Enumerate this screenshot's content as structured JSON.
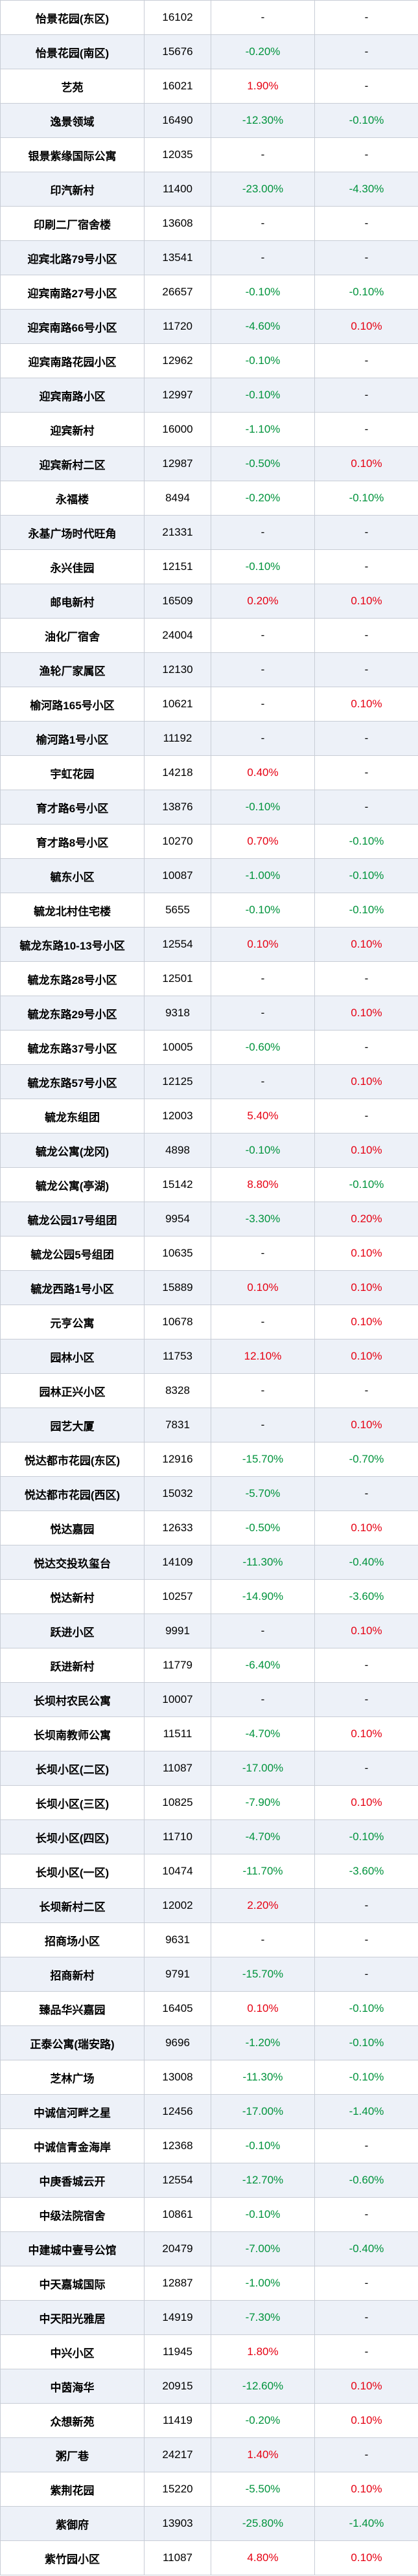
{
  "colors": {
    "up": "#e60012",
    "down": "#00933c",
    "flat": "#000000",
    "row_alt": "#edf1f8",
    "border": "#c8cdd6"
  },
  "rows": [
    {
      "name": "怡景花园(东区)",
      "price": "16102",
      "change1": "-",
      "change2": "-"
    },
    {
      "name": "怡景花园(南区)",
      "price": "15676",
      "change1": "-0.20%",
      "change2": "-"
    },
    {
      "name": "艺苑",
      "price": "16021",
      "change1": "1.90%",
      "change2": "-"
    },
    {
      "name": "逸景领域",
      "price": "16490",
      "change1": "-12.30%",
      "change2": "-0.10%"
    },
    {
      "name": "银景紫缘国际公寓",
      "price": "12035",
      "change1": "-",
      "change2": "-"
    },
    {
      "name": "印汽新村",
      "price": "11400",
      "change1": "-23.00%",
      "change2": "-4.30%"
    },
    {
      "name": "印刷二厂宿舍楼",
      "price": "13608",
      "change1": "-",
      "change2": "-"
    },
    {
      "name": "迎宾北路79号小区",
      "price": "13541",
      "change1": "-",
      "change2": "-"
    },
    {
      "name": "迎宾南路27号小区",
      "price": "26657",
      "change1": "-0.10%",
      "change2": "-0.10%"
    },
    {
      "name": "迎宾南路66号小区",
      "price": "11720",
      "change1": "-4.60%",
      "change2": "0.10%"
    },
    {
      "name": "迎宾南路花园小区",
      "price": "12962",
      "change1": "-0.10%",
      "change2": "-"
    },
    {
      "name": "迎宾南路小区",
      "price": "12997",
      "change1": "-0.10%",
      "change2": "-"
    },
    {
      "name": "迎宾新村",
      "price": "16000",
      "change1": "-1.10%",
      "change2": "-"
    },
    {
      "name": "迎宾新村二区",
      "price": "12987",
      "change1": "-0.50%",
      "change2": "0.10%"
    },
    {
      "name": "永福楼",
      "price": "8494",
      "change1": "-0.20%",
      "change2": "-0.10%"
    },
    {
      "name": "永基广场时代旺角",
      "price": "21331",
      "change1": "-",
      "change2": "-"
    },
    {
      "name": "永兴佳园",
      "price": "12151",
      "change1": "-0.10%",
      "change2": "-"
    },
    {
      "name": "邮电新村",
      "price": "16509",
      "change1": "0.20%",
      "change2": "0.10%"
    },
    {
      "name": "油化厂宿舍",
      "price": "24004",
      "change1": "-",
      "change2": "-"
    },
    {
      "name": "渔轮厂家属区",
      "price": "12130",
      "change1": "-",
      "change2": "-"
    },
    {
      "name": "榆河路165号小区",
      "price": "10621",
      "change1": "-",
      "change2": "0.10%"
    },
    {
      "name": "榆河路1号小区",
      "price": "11192",
      "change1": "-",
      "change2": "-"
    },
    {
      "name": "宇虹花园",
      "price": "14218",
      "change1": "0.40%",
      "change2": "-"
    },
    {
      "name": "育才路6号小区",
      "price": "13876",
      "change1": "-0.10%",
      "change2": "-"
    },
    {
      "name": "育才路8号小区",
      "price": "10270",
      "change1": "0.70%",
      "change2": "-0.10%"
    },
    {
      "name": "毓东小区",
      "price": "10087",
      "change1": "-1.00%",
      "change2": "-0.10%"
    },
    {
      "name": "毓龙北村住宅楼",
      "price": "5655",
      "change1": "-0.10%",
      "change2": "-0.10%"
    },
    {
      "name": "毓龙东路10-13号小区",
      "price": "12554",
      "change1": "0.10%",
      "change2": "0.10%"
    },
    {
      "name": "毓龙东路28号小区",
      "price": "12501",
      "change1": "-",
      "change2": "-"
    },
    {
      "name": "毓龙东路29号小区",
      "price": "9318",
      "change1": "-",
      "change2": "0.10%"
    },
    {
      "name": "毓龙东路37号小区",
      "price": "10005",
      "change1": "-0.60%",
      "change2": "-"
    },
    {
      "name": "毓龙东路57号小区",
      "price": "12125",
      "change1": "-",
      "change2": "0.10%"
    },
    {
      "name": "毓龙东组团",
      "price": "12003",
      "change1": "5.40%",
      "change2": "-"
    },
    {
      "name": "毓龙公寓(龙冈)",
      "price": "4898",
      "change1": "-0.10%",
      "change2": "0.10%"
    },
    {
      "name": "毓龙公寓(亭湖)",
      "price": "15142",
      "change1": "8.80%",
      "change2": "-0.10%"
    },
    {
      "name": "毓龙公园17号组团",
      "price": "9954",
      "change1": "-3.30%",
      "change2": "0.20%"
    },
    {
      "name": "毓龙公园5号组团",
      "price": "10635",
      "change1": "-",
      "change2": "0.10%"
    },
    {
      "name": "毓龙西路1号小区",
      "price": "15889",
      "change1": "0.10%",
      "change2": "0.10%"
    },
    {
      "name": "元亨公寓",
      "price": "10678",
      "change1": "-",
      "change2": "0.10%"
    },
    {
      "name": "园林小区",
      "price": "11753",
      "change1": "12.10%",
      "change2": "0.10%"
    },
    {
      "name": "园林正兴小区",
      "price": "8328",
      "change1": "-",
      "change2": "-"
    },
    {
      "name": "园艺大厦",
      "price": "7831",
      "change1": "-",
      "change2": "0.10%"
    },
    {
      "name": "悦达都市花园(东区)",
      "price": "12916",
      "change1": "-15.70%",
      "change2": "-0.70%"
    },
    {
      "name": "悦达都市花园(西区)",
      "price": "15032",
      "change1": "-5.70%",
      "change2": "-"
    },
    {
      "name": "悦达嘉园",
      "price": "12633",
      "change1": "-0.50%",
      "change2": "0.10%"
    },
    {
      "name": "悦达交投玖玺台",
      "price": "14109",
      "change1": "-11.30%",
      "change2": "-0.40%"
    },
    {
      "name": "悦达新村",
      "price": "10257",
      "change1": "-14.90%",
      "change2": "-3.60%"
    },
    {
      "name": "跃进小区",
      "price": "9991",
      "change1": "-",
      "change2": "0.10%"
    },
    {
      "name": "跃进新村",
      "price": "11779",
      "change1": "-6.40%",
      "change2": "-"
    },
    {
      "name": "长坝村农民公寓",
      "price": "10007",
      "change1": "-",
      "change2": "-"
    },
    {
      "name": "长坝南教师公寓",
      "price": "11511",
      "change1": "-4.70%",
      "change2": "0.10%"
    },
    {
      "name": "长坝小区(二区)",
      "price": "11087",
      "change1": "-17.00%",
      "change2": "-"
    },
    {
      "name": "长坝小区(三区)",
      "price": "10825",
      "change1": "-7.90%",
      "change2": "0.10%"
    },
    {
      "name": "长坝小区(四区)",
      "price": "11710",
      "change1": "-4.70%",
      "change2": "-0.10%"
    },
    {
      "name": "长坝小区(一区)",
      "price": "10474",
      "change1": "-11.70%",
      "change2": "-3.60%"
    },
    {
      "name": "长坝新村二区",
      "price": "12002",
      "change1": "2.20%",
      "change2": "-"
    },
    {
      "name": "招商场小区",
      "price": "9631",
      "change1": "-",
      "change2": "-"
    },
    {
      "name": "招商新村",
      "price": "9791",
      "change1": "-15.70%",
      "change2": "-"
    },
    {
      "name": "臻品华兴嘉园",
      "price": "16405",
      "change1": "0.10%",
      "change2": "-0.10%"
    },
    {
      "name": "正泰公寓(瑞安路)",
      "price": "9696",
      "change1": "-1.20%",
      "change2": "-0.10%"
    },
    {
      "name": "芝林广场",
      "price": "13008",
      "change1": "-11.30%",
      "change2": "-0.10%"
    },
    {
      "name": "中诚信河畔之星",
      "price": "12456",
      "change1": "-17.00%",
      "change2": "-1.40%"
    },
    {
      "name": "中诚信青金海岸",
      "price": "12368",
      "change1": "-0.10%",
      "change2": "-"
    },
    {
      "name": "中庚香城云开",
      "price": "12554",
      "change1": "-12.70%",
      "change2": "-0.60%"
    },
    {
      "name": "中级法院宿舍",
      "price": "10861",
      "change1": "-0.10%",
      "change2": "-"
    },
    {
      "name": "中建城中壹号公馆",
      "price": "20479",
      "change1": "-7.00%",
      "change2": "-0.40%"
    },
    {
      "name": "中天嘉城国际",
      "price": "12887",
      "change1": "-1.00%",
      "change2": "-"
    },
    {
      "name": "中天阳光雅居",
      "price": "14919",
      "change1": "-7.30%",
      "change2": "-"
    },
    {
      "name": "中兴小区",
      "price": "11945",
      "change1": "1.80%",
      "change2": "-"
    },
    {
      "name": "中茵海华",
      "price": "20915",
      "change1": "-12.60%",
      "change2": "0.10%"
    },
    {
      "name": "众想新苑",
      "price": "11419",
      "change1": "-0.20%",
      "change2": "0.10%"
    },
    {
      "name": "粥厂巷",
      "price": "24217",
      "change1": "1.40%",
      "change2": "-"
    },
    {
      "name": "紫荆花园",
      "price": "15220",
      "change1": "-5.50%",
      "change2": "0.10%"
    },
    {
      "name": "紫御府",
      "price": "13903",
      "change1": "-25.80%",
      "change2": "-1.40%"
    },
    {
      "name": "紫竹园小区",
      "price": "11087",
      "change1": "4.80%",
      "change2": "0.10%"
    }
  ]
}
